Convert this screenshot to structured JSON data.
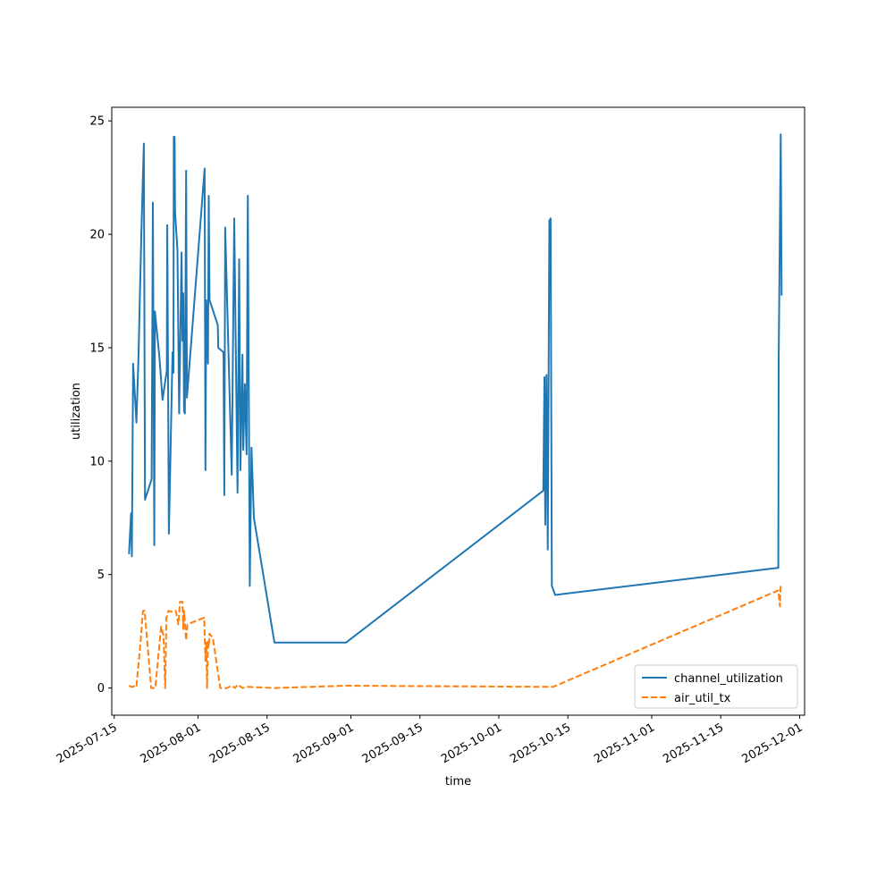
{
  "chart_data": {
    "type": "line",
    "title": "",
    "xlabel": "time",
    "ylabel": "utilization",
    "x_axis": {
      "type": "date",
      "range": [
        "2025-07-14T12:00",
        "2025-12-02"
      ],
      "ticks": [
        "2025-07-15",
        "2025-08-01",
        "2025-08-15",
        "2025-09-01",
        "2025-09-15",
        "2025-10-01",
        "2025-10-15",
        "2025-11-01",
        "2025-11-15",
        "2025-12-01"
      ]
    },
    "y_axis": {
      "range": [
        -1.2,
        25.6
      ],
      "ticks": [
        0,
        5,
        10,
        15,
        20,
        25
      ]
    },
    "grid": false,
    "legend": {
      "placement": "bottom-right"
    },
    "series": [
      {
        "name": "channel_utilization",
        "color": "#1f77b4",
        "dash": "solid",
        "points": [
          [
            "2025-07-18T00:00",
            5.9
          ],
          [
            "2025-07-18T10:00",
            7.7
          ],
          [
            "2025-07-18T14:00",
            5.8
          ],
          [
            "2025-07-18T20:00",
            14.3
          ],
          [
            "2025-07-19T12:00",
            11.7
          ],
          [
            "2025-07-19T22:00",
            14.6
          ],
          [
            "2025-07-20T12:00",
            20.0
          ],
          [
            "2025-07-21T00:00",
            24.0
          ],
          [
            "2025-07-21T06:00",
            8.3
          ],
          [
            "2025-07-22T14:00",
            9.2
          ],
          [
            "2025-07-22T20:00",
            21.4
          ],
          [
            "2025-07-23T03:00",
            6.3
          ],
          [
            "2025-07-23T06:00",
            16.6
          ],
          [
            "2025-07-24T04:00",
            14.6
          ],
          [
            "2025-07-24T19:00",
            12.7
          ],
          [
            "2025-07-25T16:00",
            14.0
          ],
          [
            "2025-07-25T18:00",
            20.4
          ],
          [
            "2025-07-26T02:00",
            6.8
          ],
          [
            "2025-07-26T20:00",
            14.8
          ],
          [
            "2025-07-27T00:00",
            13.9
          ],
          [
            "2025-07-27T02:00",
            24.3
          ],
          [
            "2025-07-27T06:00",
            24.3
          ],
          [
            "2025-07-27T08:00",
            21.0
          ],
          [
            "2025-07-27T20:00",
            19.3
          ],
          [
            "2025-07-28T04:00",
            12.1
          ],
          [
            "2025-07-28T16:00",
            19.2
          ],
          [
            "2025-07-28T20:00",
            15.3
          ],
          [
            "2025-07-29T00:00",
            17.4
          ],
          [
            "2025-07-29T04:00",
            12.2
          ],
          [
            "2025-07-29T08:00",
            12.1
          ],
          [
            "2025-07-29T14:00",
            22.8
          ],
          [
            "2025-07-29T18:00",
            12.8
          ],
          [
            "2025-08-02T08:00",
            22.9
          ],
          [
            "2025-08-02T12:00",
            9.6
          ],
          [
            "2025-08-02T16:00",
            17.1
          ],
          [
            "2025-08-03T00:00",
            14.3
          ],
          [
            "2025-08-03T04:00",
            21.7
          ],
          [
            "2025-08-03T08:00",
            17.1
          ],
          [
            "2025-08-05T00:00",
            16.0
          ],
          [
            "2025-08-05T02:00",
            15.0
          ],
          [
            "2025-08-06T04:00",
            14.8
          ],
          [
            "2025-08-06T08:00",
            8.5
          ],
          [
            "2025-08-06T12:00",
            20.3
          ],
          [
            "2025-08-07T20:00",
            9.4
          ],
          [
            "2025-08-08T08:00",
            20.7
          ],
          [
            "2025-08-09T00:00",
            8.6
          ],
          [
            "2025-08-09T08:00",
            18.9
          ],
          [
            "2025-08-09T14:00",
            9.6
          ],
          [
            "2025-08-10T00:00",
            14.7
          ],
          [
            "2025-08-10T04:00",
            10.5
          ],
          [
            "2025-08-10T12:00",
            13.4
          ],
          [
            "2025-08-10T20:00",
            10.3
          ],
          [
            "2025-08-11T02:00",
            21.7
          ],
          [
            "2025-08-11T12:00",
            4.5
          ],
          [
            "2025-08-11T20:00",
            10.6
          ],
          [
            "2025-08-12T08:00",
            7.5
          ],
          [
            "2025-08-16T12:00",
            2.0
          ],
          [
            "2025-08-31T00:00",
            2.0
          ],
          [
            "2025-10-10T00:00",
            8.7
          ],
          [
            "2025-10-10T06:00",
            13.7
          ],
          [
            "2025-10-10T10:00",
            7.2
          ],
          [
            "2025-10-10T16:00",
            13.8
          ],
          [
            "2025-10-10T22:00",
            6.1
          ],
          [
            "2025-10-11T06:00",
            20.6
          ],
          [
            "2025-10-11T12:00",
            20.7
          ],
          [
            "2025-10-11T18:00",
            4.5
          ],
          [
            "2025-10-12T10:00",
            4.1
          ],
          [
            "2025-11-26T16:00",
            5.3
          ],
          [
            "2025-11-26T18:00",
            14.4
          ],
          [
            "2025-11-27T04:00",
            24.4
          ],
          [
            "2025-11-27T08:00",
            17.3
          ]
        ]
      },
      {
        "name": "air_util_tx",
        "color": "#ff7f0e",
        "dash": "dashed",
        "points": [
          [
            "2025-07-18T00:00",
            0.1
          ],
          [
            "2025-07-18T12:00",
            0.05
          ],
          [
            "2025-07-18T20:00",
            0.05
          ],
          [
            "2025-07-19T04:00",
            0.1
          ],
          [
            "2025-07-19T12:00",
            0.05
          ],
          [
            "2025-07-20T10:00",
            2.2
          ],
          [
            "2025-07-20T20:00",
            3.4
          ],
          [
            "2025-07-21T04:00",
            3.4
          ],
          [
            "2025-07-22T12:00",
            0.0
          ],
          [
            "2025-07-23T08:00",
            0.0
          ],
          [
            "2025-07-24T12:00",
            2.7
          ],
          [
            "2025-07-25T00:00",
            2.3
          ],
          [
            "2025-07-25T08:00",
            0.0
          ],
          [
            "2025-07-25T14:00",
            3.1
          ],
          [
            "2025-07-26T00:00",
            3.4
          ],
          [
            "2025-07-27T00:00",
            3.35
          ],
          [
            "2025-07-27T12:00",
            3.4
          ],
          [
            "2025-07-28T00:00",
            2.8
          ],
          [
            "2025-07-28T08:00",
            3.8
          ],
          [
            "2025-07-28T20:00",
            3.8
          ],
          [
            "2025-07-29T00:00",
            2.6
          ],
          [
            "2025-07-29T04:00",
            3.4
          ],
          [
            "2025-07-29T08:00",
            2.9
          ],
          [
            "2025-07-29T14:00",
            2.1
          ],
          [
            "2025-07-29T20:00",
            2.8
          ],
          [
            "2025-08-02T06:00",
            3.1
          ],
          [
            "2025-08-02T12:00",
            1.2
          ],
          [
            "2025-08-02T16:00",
            2.0
          ],
          [
            "2025-08-02T20:00",
            0.0
          ],
          [
            "2025-08-03T00:00",
            2.1
          ],
          [
            "2025-08-03T04:00",
            1.8
          ],
          [
            "2025-08-03T08:00",
            2.4
          ],
          [
            "2025-08-04T00:00",
            2.2
          ],
          [
            "2025-08-05T12:00",
            0.0
          ],
          [
            "2025-08-06T20:00",
            0.0
          ],
          [
            "2025-08-07T20:00",
            0.1
          ],
          [
            "2025-08-08T12:00",
            0.0
          ],
          [
            "2025-08-09T00:00",
            0.15
          ],
          [
            "2025-08-10T00:00",
            0.0
          ],
          [
            "2025-08-11T00:00",
            0.05
          ],
          [
            "2025-08-16T12:00",
            0.0
          ],
          [
            "2025-08-31T00:00",
            0.1
          ],
          [
            "2025-10-11T00:00",
            0.05
          ],
          [
            "2025-10-12T00:00",
            0.05
          ],
          [
            "2025-11-26T16:00",
            4.3
          ],
          [
            "2025-11-27T00:00",
            3.6
          ],
          [
            "2025-11-27T04:00",
            4.6
          ]
        ]
      }
    ]
  }
}
